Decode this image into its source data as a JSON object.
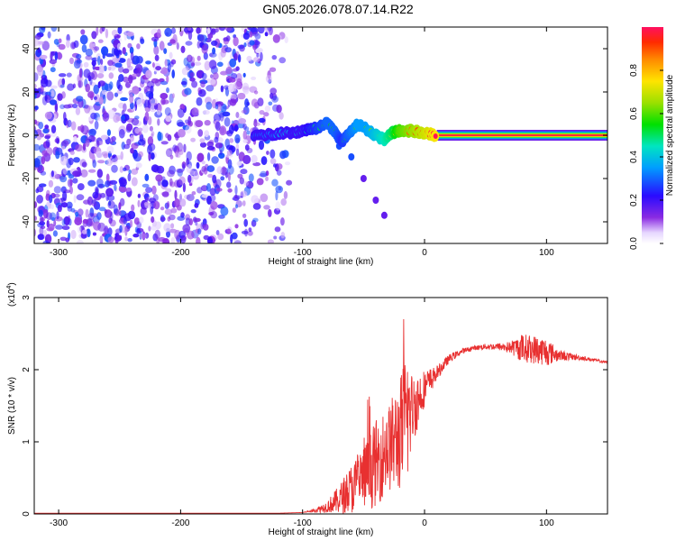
{
  "title": "GN05.2026.078.07.14.R22",
  "colors": {
    "snr_line": "#e83030",
    "sidelobe": "#7b2fe0"
  },
  "chart_data": [
    {
      "type": "heatmap",
      "xlabel": "Height of straight line (km)",
      "ylabel": "Frequency (Hz)",
      "xlim": [
        -320,
        150
      ],
      "ylim": [
        -50,
        50
      ],
      "x_ticks": [
        -300,
        -200,
        -100,
        0,
        100
      ],
      "y_ticks": [
        -40,
        -20,
        0,
        20,
        40
      ],
      "colorbar": {
        "label": "Normalized spectral amplitude",
        "range": [
          0,
          1
        ],
        "ticks": [
          0.0,
          0.2,
          0.4,
          0.6,
          0.8
        ],
        "colormap": "rainbow-white-violet-red"
      },
      "noise_region": {
        "x_range": [
          -320,
          -110
        ],
        "y_range": [
          -50,
          50
        ],
        "amplitude_max": 0.25
      },
      "signal_track": [
        {
          "x": -140,
          "y": 0,
          "amp": 0.3
        },
        {
          "x": -125,
          "y": 0.5,
          "amp": 0.35
        },
        {
          "x": -110,
          "y": 1,
          "amp": 0.4
        },
        {
          "x": -100,
          "y": 2,
          "amp": 0.45
        },
        {
          "x": -90,
          "y": 3,
          "amp": 0.5
        },
        {
          "x": -80,
          "y": 6,
          "amp": 0.55
        },
        {
          "x": -73,
          "y": 1,
          "amp": 0.55
        },
        {
          "x": -68,
          "y": -3,
          "amp": 0.5
        },
        {
          "x": -62,
          "y": 1,
          "amp": 0.55
        },
        {
          "x": -55,
          "y": 5,
          "amp": 0.6
        },
        {
          "x": -48,
          "y": 3,
          "amp": 0.6
        },
        {
          "x": -40,
          "y": 0,
          "amp": 0.65
        },
        {
          "x": -33,
          "y": -2,
          "amp": 0.7
        },
        {
          "x": -27,
          "y": 1,
          "amp": 0.75
        },
        {
          "x": -20,
          "y": 2,
          "amp": 0.85
        },
        {
          "x": -10,
          "y": 2,
          "amp": 0.9
        },
        {
          "x": 0,
          "y": 1,
          "amp": 0.95
        },
        {
          "x": 10,
          "y": 0,
          "amp": 1.0
        },
        {
          "x": 150,
          "y": 0,
          "amp": 1.0
        }
      ],
      "side_branch": [
        {
          "x": -70,
          "y": -5
        },
        {
          "x": -60,
          "y": -10
        },
        {
          "x": -50,
          "y": -20
        },
        {
          "x": -40,
          "y": -30
        },
        {
          "x": -33,
          "y": -37
        }
      ]
    },
    {
      "type": "line",
      "xlabel": "Height of straight line (km)",
      "ylabel": "SNR (10 * v/v)",
      "y_scale_label_base": "(x10",
      "y_scale_label_exp": "4",
      "y_scale_label_close": ")",
      "xlim": [
        -320,
        150
      ],
      "ylim": [
        0,
        3
      ],
      "x_ticks": [
        -300,
        -200,
        -100,
        0,
        100
      ],
      "y_ticks": [
        0,
        1,
        2,
        3
      ],
      "series": [
        {
          "x": [
            -320,
            -200,
            -120,
            -100,
            -90,
            -80,
            -70,
            -60,
            -50,
            -40,
            -30,
            -20,
            -15,
            -10,
            -5,
            0,
            10,
            20,
            30,
            40,
            50,
            60,
            70,
            80,
            90,
            100,
            110,
            120,
            130,
            140,
            150
          ],
          "y": [
            0.01,
            0.01,
            0.01,
            0.02,
            0.05,
            0.1,
            0.2,
            0.35,
            0.5,
            0.7,
            0.9,
            1.1,
            1.3,
            1.45,
            1.6,
            1.75,
            1.95,
            2.15,
            2.25,
            2.3,
            2.32,
            2.32,
            2.31,
            2.3,
            2.28,
            2.25,
            2.2,
            2.18,
            2.16,
            2.13,
            2.1
          ],
          "noise": [
            0,
            0,
            0,
            0,
            0.03,
            0.08,
            0.2,
            0.35,
            0.45,
            0.6,
            0.6,
            0.8,
            1.0,
            0.5,
            0.4,
            0.25,
            0.1,
            0.06,
            0.04,
            0.03,
            0.04,
            0.05,
            0.08,
            0.2,
            0.2,
            0.2,
            0.08,
            0.05,
            0.03,
            0.02,
            0.02
          ]
        }
      ]
    }
  ]
}
